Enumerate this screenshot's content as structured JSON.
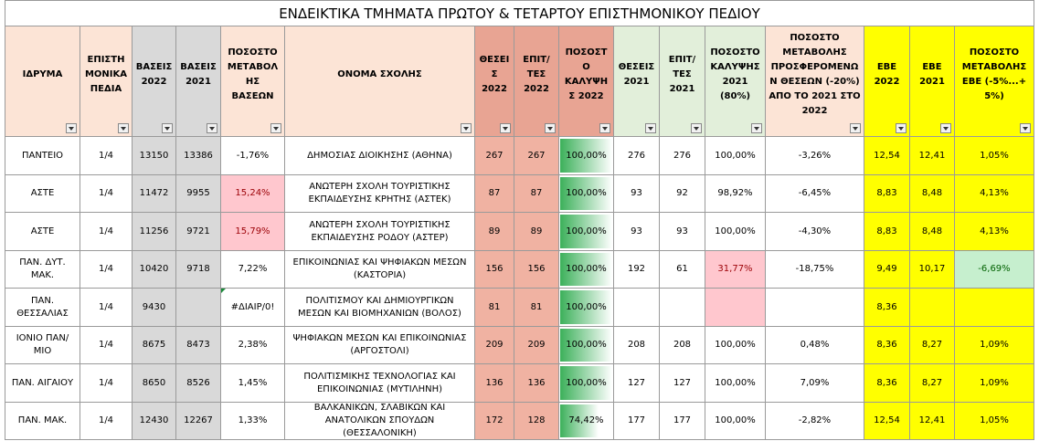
{
  "title": "ΕΝΔΕΙΚΤΙΚΑ ΤΜΗΜΑΤΑ ΠΡΩΤΟΥ & ΤΕΤΑΡΤΟΥ ΕΠΙΣΤΗΜΟΝΙΚΟΥ ΠΕΔΙΟΥ",
  "table": {
    "headers": [
      "ΙΔΡΥΜΑ",
      "ΕΠΙΣΤΗΜΟΝΙΚΑ ΠΕΔΙΑ",
      "ΒΑΣΕΙΣ 2022",
      "ΒΑΣΕΙΣ 2021",
      "ΠΟΣΟΣΤΟ ΜΕΤΑΒΟΛΗΣ ΒΑΣΕΩΝ",
      "ΟΝΟΜΑ ΣΧΟΛΗΣ",
      "ΘΕΣΕΙΣ 2022",
      "ΕΠΙΤ/ΤΕΣ 2022",
      "ΠΟΣΟΣΤΟ ΚΑΛΥΨΗΣ 2022",
      "ΘΕΣΕΙΣ 2021",
      "ΕΠΙΤ/ΤΕΣ 2021",
      "ΠΟΣΟΣΤΟ ΚΑΛΥΨΗΣ 2021 (80%)",
      "ΠΟΣΟΣΤΟ ΜΕΤΑΒΟΛΗΣ ΠΡΟΣΦΕΡΟΜΕΝΩΝ ΘΕΣΕΩΝ (-20%) ΑΠΟ ΤΟ 2021 ΣΤΟ 2022",
      "ΕΒΕ 2022",
      "ΕΒΕ 2021",
      "ΠΟΣΟΣΤΟ ΜΕΤΑΒΟΛΗΣ ΕΒΕ (-5%...+ 5%)"
    ],
    "rows": [
      [
        "ΠΑΝΤΕΙΟ",
        "1/4",
        13150,
        13386,
        "-1,76%",
        "ΔΗΜΟΣΙΑΣ ΔΙΟΙΚΗΣΗΣ (ΑΘΗΝΑ)",
        267,
        267,
        "100,00%",
        276,
        276,
        "100,00%",
        "-3,26%",
        "12,54",
        "12,41",
        "1,05%"
      ],
      [
        "ΑΣΤΕ",
        "1/4",
        11472,
        9955,
        "15,24%",
        "ΑΝΩΤΕΡΗ ΣΧΟΛΗ ΤΟΥΡΙΣΤΙΚΗΣ ΕΚΠΑΙΔΕΥΣΗΣ ΚΡΗΤΗΣ (ΑΣΤΕΚ)",
        87,
        87,
        "100,00%",
        93,
        92,
        "98,92%",
        "-6,45%",
        "8,83",
        "8,48",
        "4,13%"
      ],
      [
        "ΑΣΤΕ",
        "1/4",
        11256,
        9721,
        "15,79%",
        "ΑΝΩΤΕΡΗ ΣΧΟΛΗ ΤΟΥΡΙΣΤΙΚΗΣ ΕΚΠΑΙΔΕΥΣΗΣ ΡΟΔΟΥ (ΑΣΤΕΡ)",
        89,
        89,
        "100,00%",
        93,
        93,
        "100,00%",
        "-4,30%",
        "8,83",
        "8,48",
        "4,13%"
      ],
      [
        "ΠΑΝ. ΔΥΤ. ΜΑΚ.",
        "1/4",
        10420,
        9718,
        "7,22%",
        "ΕΠΙΚΟΙΝΩΝΙΑΣ ΚΑΙ ΨΗΦΙΑΚΩΝ ΜΕΣΩΝ (ΚΑΣΤΟΡΙΑ)",
        156,
        156,
        "100,00%",
        192,
        61,
        "31,77%",
        "-18,75%",
        "9,49",
        "10,17",
        "-6,69%"
      ],
      [
        "ΠΑΝ. ΘΕΣΣΑΛΙΑΣ",
        "1/4",
        9430,
        null,
        "#ΔΙΑΙΡ/0!",
        "ΠΟΛΙΤΙΣΜΟΥ ΚΑΙ ΔΗΜΙΟΥΡΓΙΚΩΝ ΜΕΣΩΝ ΚΑΙ ΒΙΟΜΗΧΑΝΙΩΝ (ΒΟΛΟΣ)",
        81,
        81,
        "100,00%",
        null,
        null,
        null,
        null,
        "8,36",
        null,
        null
      ],
      [
        "ΙΟΝΙΟ ΠΑΝ/ΜΙΟ",
        "1/4",
        8675,
        8473,
        "2,38%",
        "ΨΗΦΙΑΚΩΝ ΜΕΣΩΝ ΚΑΙ ΕΠΙΚΟΙΝΩΝΙΑΣ (ΑΡΓΟΣΤΟΛΙ)",
        209,
        209,
        "100,00%",
        208,
        208,
        "100,00%",
        "0,48%",
        "8,36",
        "8,27",
        "1,09%"
      ],
      [
        "ΠΑΝ. ΑΙΓΑΙΟΥ",
        "1/4",
        8650,
        8526,
        "1,45%",
        "ΠΟΛΙΤΙΣΜΙΚΗΣ ΤΕΧΝΟΛΟΓΙΑΣ ΚΑΙ ΕΠΙΚΟΙΝΩΝΙΑΣ (ΜΥΤΙΛΗΝΗ)",
        136,
        136,
        "100,00%",
        127,
        127,
        "100,00%",
        "7,09%",
        "8,36",
        "8,27",
        "1,09%"
      ],
      [
        "ΠΑΝ. ΜΑΚ.",
        "1/4",
        12430,
        12267,
        "1,33%",
        "ΒΑΛΚΑΝΙΚΩΝ, ΣΛΑΒΙΚΩΝ ΚΑΙ ΑΝΑΤΟΛΙΚΩΝ ΣΠΟΥΔΩΝ (ΘΕΣΣΑΛΟΝΙΚΗ)",
        172,
        128,
        "74,42%",
        177,
        177,
        "100,00%",
        "-2,82%",
        "12,54",
        "12,41",
        "1,05%"
      ]
    ]
  }
}
